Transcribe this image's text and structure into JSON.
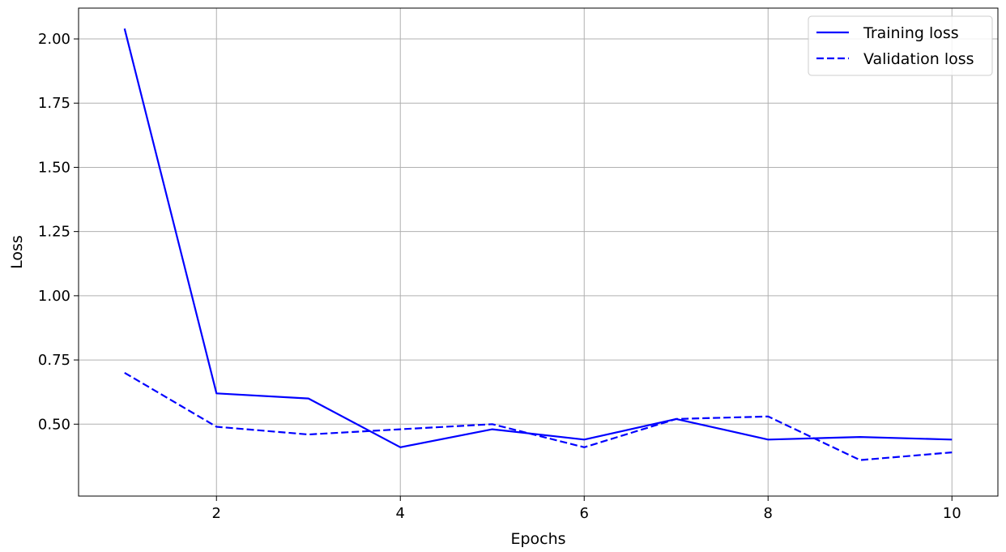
{
  "chart_data": {
    "type": "line",
    "title": "",
    "xlabel": "Epochs",
    "ylabel": "Loss",
    "xlim": [
      0.5,
      10.5
    ],
    "ylim": [
      0.22,
      2.12
    ],
    "xticks": [
      2,
      4,
      6,
      8,
      10
    ],
    "yticks": [
      0.5,
      0.75,
      1.0,
      1.25,
      1.5,
      1.75,
      2.0
    ],
    "xtick_labels": [
      "2",
      "4",
      "6",
      "8",
      "10"
    ],
    "ytick_labels": [
      "0.50",
      "0.75",
      "1.00",
      "1.25",
      "1.50",
      "1.75",
      "2.00"
    ],
    "grid": true,
    "legend_position": "top-right",
    "x": [
      1,
      2,
      3,
      4,
      5,
      6,
      7,
      8,
      9,
      10
    ],
    "series": [
      {
        "name": "Training loss",
        "color": "#0000ff",
        "style": "solid",
        "values": [
          2.04,
          0.62,
          0.6,
          0.41,
          0.48,
          0.44,
          0.52,
          0.44,
          0.45,
          0.44
        ]
      },
      {
        "name": "Validation loss",
        "color": "#0000ff",
        "style": "dashed",
        "values": [
          0.7,
          0.49,
          0.46,
          0.48,
          0.5,
          0.41,
          0.52,
          0.53,
          0.36,
          0.39
        ]
      }
    ]
  }
}
